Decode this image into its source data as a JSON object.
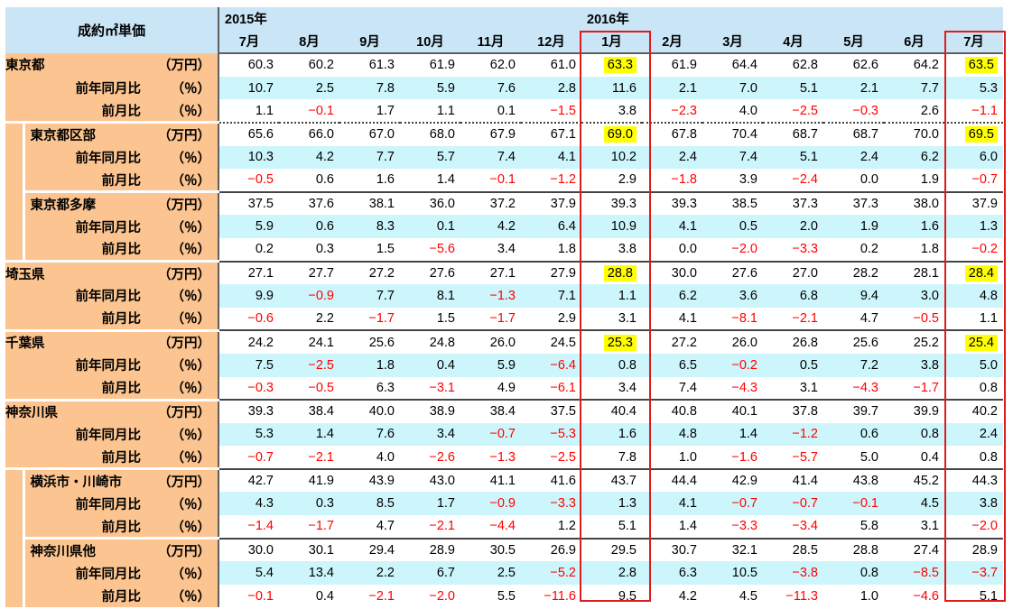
{
  "header": {
    "title": "成約㎡単価",
    "year_2015": "2015年",
    "year_2016": "2016年",
    "months": [
      "7月",
      "8月",
      "9月",
      "10月",
      "11月",
      "12月",
      "1月",
      "2月",
      "3月",
      "4月",
      "5月",
      "6月",
      "7月"
    ]
  },
  "units": {
    "price": "（万円）",
    "pct": "（％）"
  },
  "sub_labels": {
    "yoy": "前年同月比",
    "mom": "前月比"
  },
  "regions": [
    {
      "name": "東京都",
      "indent": 0,
      "price": [
        "60.3",
        "60.2",
        "61.3",
        "61.9",
        "62.0",
        "61.0",
        "63.3",
        "61.9",
        "64.4",
        "62.8",
        "62.6",
        "64.2",
        "63.5"
      ],
      "yoy": [
        "10.7",
        "2.5",
        "7.8",
        "5.9",
        "7.6",
        "2.8",
        "11.6",
        "2.1",
        "7.0",
        "5.1",
        "2.1",
        "7.7",
        "5.3"
      ],
      "mom": [
        "1.1",
        "−0.1",
        "1.7",
        "1.1",
        "0.1",
        "−1.5",
        "3.8",
        "−2.3",
        "4.0",
        "−2.5",
        "−0.3",
        "2.6",
        "−1.1"
      ]
    },
    {
      "name": "東京都区部",
      "indent": 1,
      "price": [
        "65.6",
        "66.0",
        "67.0",
        "68.0",
        "67.9",
        "67.1",
        "69.0",
        "67.8",
        "70.4",
        "68.7",
        "68.7",
        "70.0",
        "69.5"
      ],
      "yoy": [
        "10.3",
        "4.2",
        "7.7",
        "5.7",
        "7.4",
        "4.1",
        "10.2",
        "2.4",
        "7.4",
        "5.1",
        "2.4",
        "6.2",
        "6.0"
      ],
      "mom": [
        "−0.5",
        "0.6",
        "1.6",
        "1.4",
        "−0.1",
        "−1.2",
        "2.9",
        "−1.8",
        "3.9",
        "−2.4",
        "0.0",
        "1.9",
        "−0.7"
      ]
    },
    {
      "name": "東京都多摩",
      "indent": 1,
      "price": [
        "37.5",
        "37.6",
        "38.1",
        "36.0",
        "37.2",
        "37.9",
        "39.3",
        "39.3",
        "38.5",
        "37.3",
        "37.3",
        "38.0",
        "37.9"
      ],
      "yoy": [
        "5.9",
        "0.6",
        "8.3",
        "0.1",
        "4.2",
        "6.4",
        "10.9",
        "4.1",
        "0.5",
        "2.0",
        "1.9",
        "1.6",
        "1.3"
      ],
      "mom": [
        "0.2",
        "0.3",
        "1.5",
        "−5.6",
        "3.4",
        "1.8",
        "3.8",
        "0.0",
        "−2.0",
        "−3.3",
        "0.2",
        "1.8",
        "−0.2"
      ]
    },
    {
      "name": "埼玉県",
      "indent": 0,
      "price": [
        "27.1",
        "27.7",
        "27.2",
        "27.6",
        "27.1",
        "27.9",
        "28.8",
        "30.0",
        "27.6",
        "27.0",
        "28.2",
        "28.1",
        "28.4"
      ],
      "yoy": [
        "9.9",
        "−0.9",
        "7.7",
        "8.1",
        "−1.3",
        "7.1",
        "1.1",
        "6.2",
        "3.6",
        "6.8",
        "9.4",
        "3.0",
        "4.8"
      ],
      "mom": [
        "−0.6",
        "2.2",
        "−1.7",
        "1.5",
        "−1.7",
        "2.9",
        "3.1",
        "4.1",
        "−8.1",
        "−2.1",
        "4.7",
        "−0.5",
        "1.1"
      ]
    },
    {
      "name": "千葉県",
      "indent": 0,
      "price": [
        "24.2",
        "24.1",
        "25.6",
        "24.8",
        "26.0",
        "24.5",
        "25.3",
        "27.2",
        "26.0",
        "26.8",
        "25.6",
        "25.2",
        "25.4"
      ],
      "yoy": [
        "7.5",
        "−2.5",
        "1.8",
        "0.4",
        "5.9",
        "−6.4",
        "0.8",
        "6.5",
        "−0.2",
        "0.5",
        "7.2",
        "3.8",
        "5.0"
      ],
      "mom": [
        "−0.3",
        "−0.5",
        "6.3",
        "−3.1",
        "4.9",
        "−6.1",
        "3.4",
        "7.4",
        "−4.3",
        "3.1",
        "−4.3",
        "−1.7",
        "0.8"
      ]
    },
    {
      "name": "神奈川県",
      "indent": 0,
      "price": [
        "39.3",
        "38.4",
        "40.0",
        "38.9",
        "38.4",
        "37.5",
        "40.4",
        "40.8",
        "40.1",
        "37.8",
        "39.7",
        "39.9",
        "40.2"
      ],
      "yoy": [
        "5.3",
        "1.4",
        "7.6",
        "3.4",
        "−0.7",
        "−5.3",
        "1.6",
        "4.8",
        "1.4",
        "−1.2",
        "0.6",
        "0.8",
        "2.4"
      ],
      "mom": [
        "−0.7",
        "−2.1",
        "4.0",
        "−2.6",
        "−1.3",
        "−2.5",
        "7.8",
        "1.0",
        "−1.6",
        "−5.7",
        "5.0",
        "0.4",
        "0.8"
      ]
    },
    {
      "name": "横浜市・川崎市",
      "indent": 1,
      "price": [
        "42.7",
        "41.9",
        "43.9",
        "43.0",
        "41.1",
        "41.6",
        "43.7",
        "44.4",
        "42.9",
        "41.4",
        "43.8",
        "45.2",
        "44.3"
      ],
      "yoy": [
        "4.3",
        "0.3",
        "8.5",
        "1.7",
        "−0.9",
        "−3.3",
        "1.3",
        "4.1",
        "−0.7",
        "−0.7",
        "−0.1",
        "4.5",
        "3.8"
      ],
      "mom": [
        "−1.4",
        "−1.7",
        "4.7",
        "−2.1",
        "−4.4",
        "1.2",
        "5.1",
        "1.4",
        "−3.3",
        "−3.4",
        "5.8",
        "3.1",
        "−2.0"
      ]
    },
    {
      "name": "神奈川県他",
      "indent": 1,
      "price": [
        "30.0",
        "30.1",
        "29.4",
        "28.9",
        "30.5",
        "26.9",
        "29.5",
        "30.7",
        "32.1",
        "28.5",
        "28.8",
        "27.4",
        "28.9"
      ],
      "yoy": [
        "5.4",
        "13.4",
        "2.2",
        "6.7",
        "2.5",
        "−5.2",
        "2.8",
        "6.3",
        "10.5",
        "−3.8",
        "0.8",
        "−8.5",
        "−3.7"
      ],
      "mom": [
        "−0.1",
        "0.4",
        "−2.1",
        "−2.0",
        "5.5",
        "−11.6",
        "9.5",
        "4.2",
        "4.5",
        "−11.3",
        "1.0",
        "−4.6",
        "5.1"
      ]
    }
  ],
  "highlights": {
    "regions": [
      "東京都",
      "東京都区部",
      "埼玉県",
      "千葉県"
    ],
    "columns": [
      6,
      12
    ]
  },
  "colors": {
    "label_bg": "#fbc490",
    "header_bg": "#c9e5f6",
    "alt_row_bg": "#ccf6fb",
    "negative": "#ff0000",
    "highlight": "#ffff00",
    "box_border": "#e01b1b"
  }
}
